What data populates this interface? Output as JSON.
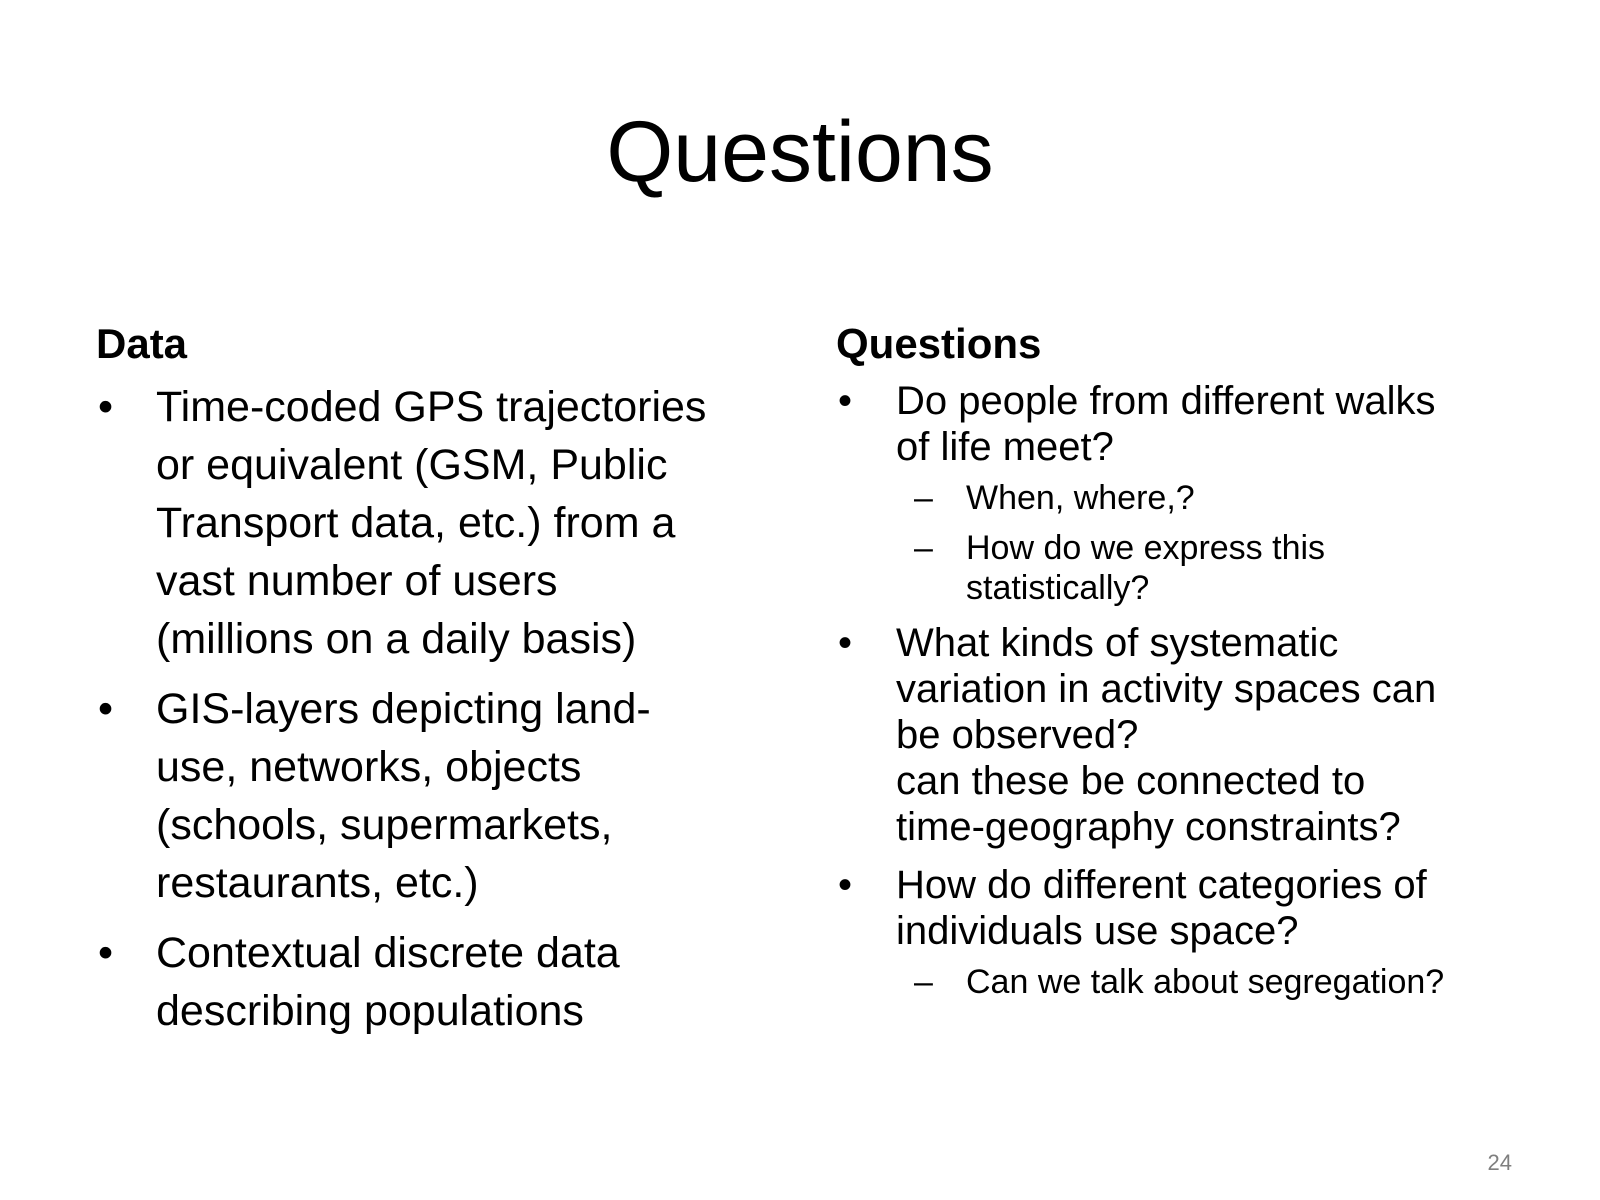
{
  "slide": {
    "title": "Questions",
    "page_number": "24",
    "bullet_glyph": "•",
    "dash_glyph": "–"
  },
  "left": {
    "heading": "Data",
    "items": [
      {
        "text": "Time-coded GPS trajectories\nor equivalent (GSM, Public\nTransport data, etc.) from a\nvast number of users\n(millions on a daily basis)"
      },
      {
        "text": "GIS-layers depicting land-\nuse, networks, objects\n(schools, supermarkets,\nrestaurants, etc.)"
      },
      {
        "text": "Contextual discrete data\ndescribing populations"
      }
    ]
  },
  "right": {
    "heading": "Questions",
    "items": [
      {
        "text": "Do people from different walks\nof life meet?",
        "sub": [
          "When, where,?",
          "How do we express this\nstatistically?"
        ]
      },
      {
        "text": "What kinds of systematic\nvariation in activity spaces can\nbe observed?\ncan these be connected to\ntime-geography constraints?"
      },
      {
        "text": "How do different categories of\nindividuals use space?",
        "sub": [
          "Can we talk about segregation?"
        ]
      }
    ]
  }
}
